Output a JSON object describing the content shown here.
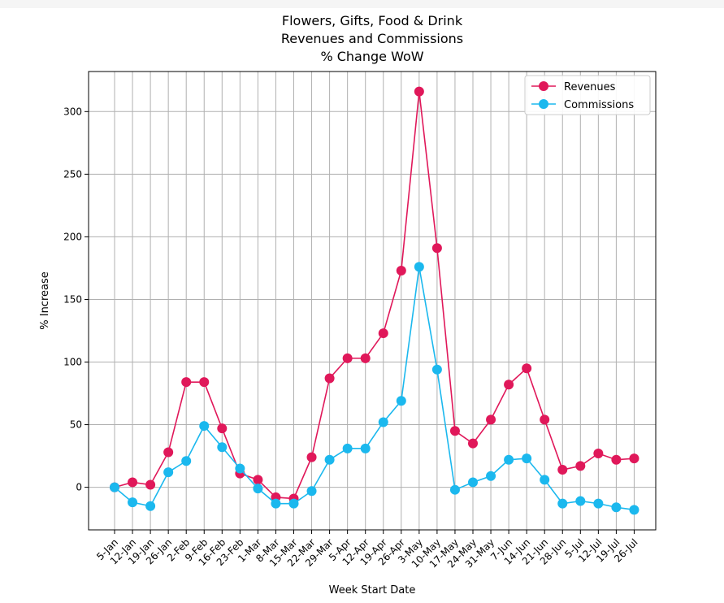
{
  "chart_data": {
    "type": "line",
    "title_lines": [
      "Flowers, Gifts, Food & Drink",
      "Revenues and Commissions",
      "% Change WoW"
    ],
    "xlabel": "Week Start Date",
    "ylabel": "% Increase",
    "ylim": [
      -34,
      332
    ],
    "yticks": [
      0,
      50,
      100,
      150,
      200,
      250,
      300
    ],
    "grid": true,
    "legend_position": "top-right",
    "categories": [
      "5-Jan",
      "12-Jan",
      "19-Jan",
      "26-Jan",
      "2-Feb",
      "9-Feb",
      "16-Feb",
      "23-Feb",
      "1-Mar",
      "8-Mar",
      "15-Mar",
      "22-Mar",
      "29-Mar",
      "5-Apr",
      "12-Apr",
      "19-Apr",
      "26-Apr",
      "3-May",
      "10-May",
      "17-May",
      "24-May",
      "31-May",
      "7-Jun",
      "14-Jun",
      "21-Jun",
      "28-Jun",
      "5-Jul",
      "12-Jul",
      "19-Jul",
      "26-Jul"
    ],
    "series": [
      {
        "name": "Revenues",
        "color": "#e0185a",
        "values": [
          0,
          4,
          2,
          28,
          84,
          84,
          47,
          11,
          6,
          -8,
          -9,
          24,
          87,
          103,
          103,
          123,
          173,
          316,
          191,
          45,
          35,
          54,
          82,
          95,
          54,
          14,
          17,
          27,
          22,
          23
        ]
      },
      {
        "name": "Commissions",
        "color": "#1bb8ee",
        "values": [
          0,
          -12,
          -15,
          12,
          21,
          49,
          32,
          15,
          -1,
          -13,
          -13,
          -3,
          22,
          31,
          31,
          52,
          69,
          176,
          94,
          -2,
          4,
          9,
          22,
          23,
          6,
          -13,
          -11,
          -13,
          -16,
          -18
        ]
      }
    ]
  }
}
